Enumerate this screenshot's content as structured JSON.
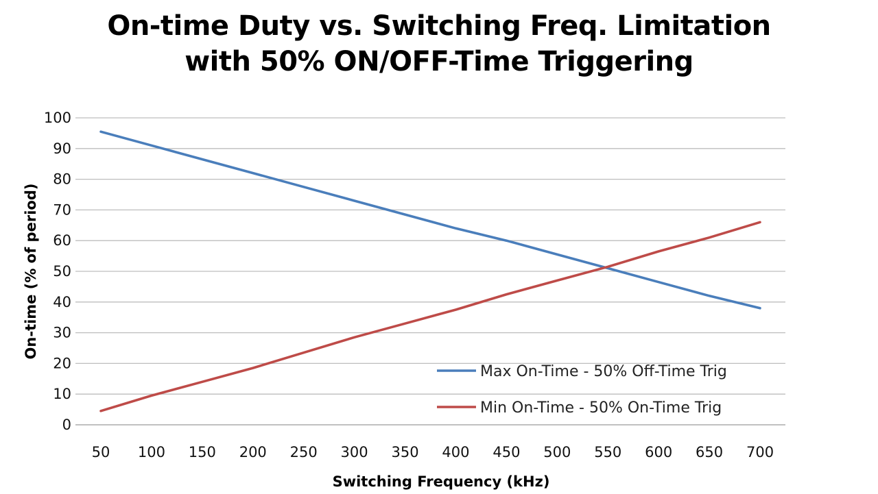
{
  "chart_data": {
    "type": "line",
    "title_lines": [
      "On-time Duty vs. Switching Freq. Limitation",
      "with 50% ON/OFF-Time Triggering"
    ],
    "xlabel": "Switching Frequency (kHz)",
    "ylabel": "On-time (% of period)",
    "x": [
      50,
      100,
      150,
      200,
      250,
      300,
      350,
      400,
      450,
      500,
      550,
      600,
      650,
      700
    ],
    "ylim": [
      0,
      100
    ],
    "y_ticks": [
      0,
      10,
      20,
      30,
      40,
      50,
      60,
      70,
      80,
      90,
      100
    ],
    "grid": true,
    "legend_position": "bottom-right",
    "series": [
      {
        "name": "Max On-Time - 50% Off-Time Trig",
        "color": "#4a7ebb",
        "values": [
          95.5,
          91.0,
          86.5,
          82.0,
          77.5,
          73.0,
          68.5,
          64.0,
          60.0,
          55.5,
          51.0,
          46.5,
          42.0,
          38.0
        ]
      },
      {
        "name": "Min On-Time - 50% On-Time Trig",
        "color": "#be4b48",
        "values": [
          4.5,
          9.5,
          14.0,
          18.5,
          23.5,
          28.5,
          33.0,
          37.5,
          42.5,
          47.0,
          51.5,
          56.5,
          61.0,
          66.0
        ]
      }
    ]
  }
}
